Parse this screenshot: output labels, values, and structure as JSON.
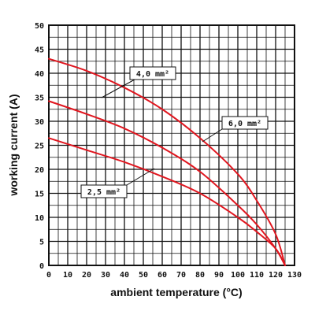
{
  "chart_data": {
    "type": "line",
    "title": "",
    "xlabel": "ambient temperature (°C)",
    "ylabel": "working current (A)",
    "xlim": [
      0,
      130
    ],
    "ylim": [
      0,
      50
    ],
    "x_ticks": [
      "0",
      "10",
      "20",
      "30",
      "40",
      "50",
      "60",
      "70",
      "80",
      "90",
      "100",
      "110",
      "120",
      "130"
    ],
    "y_ticks": [
      "0",
      "5",
      "10",
      "15",
      "20",
      "25",
      "30",
      "35",
      "40",
      "45",
      "50"
    ],
    "grid": true,
    "colors": {
      "series": "#e0161f",
      "grid": "#111111",
      "background": "#ffffff"
    },
    "series": [
      {
        "name": "4,0 mm²",
        "points": [
          [
            0,
            43.0
          ],
          [
            20,
            40.5
          ],
          [
            40,
            37.0
          ],
          [
            60,
            32.5
          ],
          [
            80,
            26.5
          ],
          [
            100,
            19.0
          ],
          [
            110,
            13.5
          ],
          [
            120,
            6.5
          ],
          [
            125,
            0
          ]
        ]
      },
      {
        "name": "6,0 mm²",
        "points": [
          [
            0,
            34.2
          ],
          [
            20,
            31.5
          ],
          [
            40,
            28.5
          ],
          [
            60,
            24.5
          ],
          [
            80,
            19.5
          ],
          [
            100,
            12.5
          ],
          [
            110,
            8.5
          ],
          [
            120,
            3.5
          ],
          [
            125,
            0
          ]
        ]
      },
      {
        "name": "2,5 mm²",
        "points": [
          [
            0,
            26.5
          ],
          [
            20,
            24.0
          ],
          [
            40,
            21.5
          ],
          [
            60,
            18.5
          ],
          [
            80,
            15.0
          ],
          [
            100,
            10.0
          ],
          [
            110,
            7.0
          ],
          [
            120,
            3.5
          ],
          [
            125,
            0
          ]
        ]
      }
    ],
    "annotations": [
      {
        "text": "4,0 mm²",
        "series": 0
      },
      {
        "text": "6,0 mm²",
        "series": 1
      },
      {
        "text": "2,5 mm²",
        "series": 2
      }
    ]
  }
}
